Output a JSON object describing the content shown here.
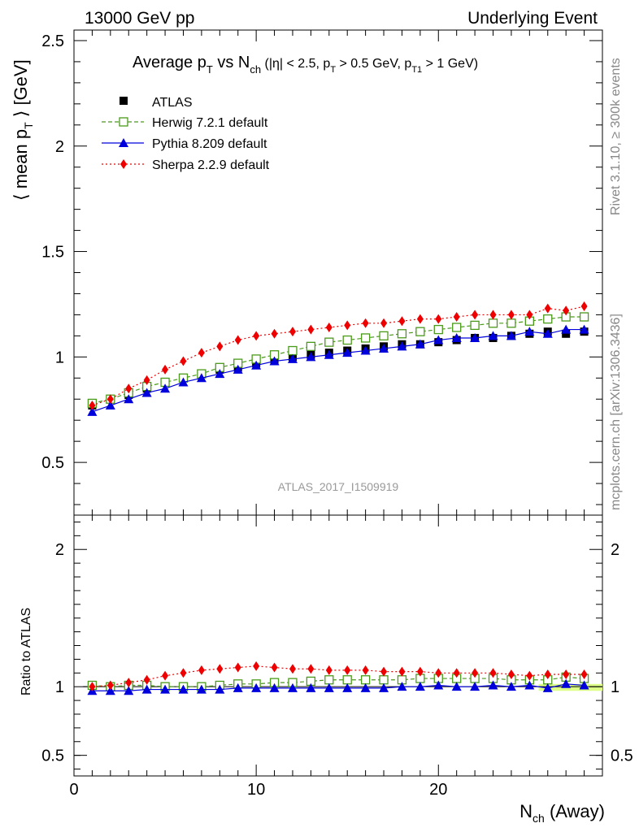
{
  "header": {
    "left": "13000 GeV pp",
    "right": "Underlying Event"
  },
  "title": {
    "main": "Average p",
    "main_sub": "T",
    "vs": " vs N",
    "vs_sub": "ch",
    "cuts_a": " (|η| < 2.5, p",
    "cuts_a_sub": "T",
    "cuts_b": " > 0.5 GeV, p",
    "cuts_b_sub": "T1",
    "cuts_c": " > 1 GeV)"
  },
  "side": {
    "rivet": "Rivet 3.1.10, ≥ 300k events",
    "mcplots": "mcplots.cern.ch [arXiv:1306.3436]"
  },
  "watermark": "ATLAS_2017_I1509919",
  "ylabel_main": {
    "pre": "⟨ mean p",
    "sub": "T",
    "post": " ⟩ [GeV]"
  },
  "ylabel_ratio": "Ratio to ATLAS",
  "xlabel": {
    "pre": "N",
    "sub": "ch",
    "post": " (Away)"
  },
  "colors": {
    "atlas": "#000000",
    "herwig": "#4a9a1a",
    "pythia": "#0000dd",
    "sherpa": "#ee0000",
    "band": "#ddff88"
  },
  "chart_data": {
    "type": "line",
    "x": [
      1,
      2,
      3,
      4,
      5,
      6,
      7,
      8,
      9,
      10,
      11,
      12,
      13,
      14,
      15,
      16,
      17,
      18,
      19,
      20,
      21,
      22,
      23,
      24,
      25,
      26,
      27,
      28
    ],
    "xlim": [
      0,
      29
    ],
    "xticks": [
      0,
      10,
      20
    ],
    "main": {
      "ylim": [
        0.25,
        2.55
      ],
      "yticks": [
        0.5,
        1,
        1.5,
        2,
        2.5
      ],
      "ytick_labels": [
        "0.5",
        "1",
        "1.5",
        "2",
        "2.5"
      ]
    },
    "ratio": {
      "ylim": [
        0.35,
        2.25
      ],
      "yticks": [
        0.5,
        1,
        2
      ],
      "ytick_labels": [
        "0.5",
        "1",
        "2"
      ]
    },
    "legend_position": "top-left",
    "series": [
      {
        "name": "ATLAS",
        "key": "atlas",
        "marker": "square-filled",
        "values": [
          0.77,
          0.8,
          0.82,
          0.85,
          0.88,
          0.9,
          0.92,
          0.94,
          0.95,
          0.97,
          0.98,
          1.0,
          1.01,
          1.02,
          1.03,
          1.04,
          1.05,
          1.06,
          1.06,
          1.07,
          1.08,
          1.09,
          1.09,
          1.1,
          1.11,
          1.12,
          1.11,
          1.12
        ],
        "ratio": [
          1,
          1,
          1,
          1,
          1,
          1,
          1,
          1,
          1,
          1,
          1,
          1,
          1,
          1,
          1,
          1,
          1,
          1,
          1,
          1,
          1,
          1,
          1,
          1,
          1,
          1,
          1,
          1
        ]
      },
      {
        "name": "Herwig 7.2.1 default",
        "key": "herwig",
        "marker": "square-open",
        "dash": "5,3",
        "values": [
          0.78,
          0.8,
          0.83,
          0.86,
          0.88,
          0.9,
          0.92,
          0.95,
          0.97,
          0.99,
          1.01,
          1.03,
          1.05,
          1.07,
          1.08,
          1.09,
          1.1,
          1.11,
          1.12,
          1.13,
          1.14,
          1.15,
          1.16,
          1.16,
          1.17,
          1.18,
          1.19,
          1.19
        ],
        "ratio": [
          1.01,
          1.0,
          1.01,
          1.01,
          1.0,
          1.0,
          1.0,
          1.01,
          1.02,
          1.02,
          1.03,
          1.03,
          1.04,
          1.05,
          1.05,
          1.05,
          1.05,
          1.05,
          1.06,
          1.06,
          1.06,
          1.06,
          1.06,
          1.05,
          1.05,
          1.05,
          1.07,
          1.06
        ]
      },
      {
        "name": "Pythia 8.209 default",
        "key": "pythia",
        "marker": "triangle",
        "dash": "",
        "values": [
          0.74,
          0.77,
          0.8,
          0.83,
          0.85,
          0.88,
          0.9,
          0.92,
          0.94,
          0.96,
          0.98,
          0.99,
          1.0,
          1.01,
          1.02,
          1.03,
          1.04,
          1.05,
          1.06,
          1.08,
          1.09,
          1.09,
          1.1,
          1.1,
          1.12,
          1.11,
          1.13,
          1.13
        ],
        "ratio": [
          0.97,
          0.97,
          0.97,
          0.98,
          0.98,
          0.98,
          0.98,
          0.98,
          0.99,
          0.99,
          0.99,
          0.99,
          0.99,
          0.99,
          0.99,
          0.99,
          0.99,
          1.0,
          1.0,
          1.01,
          1.0,
          1.0,
          1.01,
          1.0,
          1.01,
          0.99,
          1.02,
          1.01
        ]
      },
      {
        "name": "Sherpa 2.2.9 default",
        "key": "sherpa",
        "marker": "diamond",
        "dash": "2,3",
        "values": [
          0.77,
          0.8,
          0.85,
          0.89,
          0.94,
          0.98,
          1.02,
          1.05,
          1.08,
          1.1,
          1.11,
          1.12,
          1.13,
          1.14,
          1.15,
          1.16,
          1.16,
          1.17,
          1.18,
          1.18,
          1.19,
          1.2,
          1.2,
          1.2,
          1.2,
          1.23,
          1.22,
          1.24
        ],
        "ratio": [
          1.0,
          1.01,
          1.03,
          1.05,
          1.08,
          1.1,
          1.12,
          1.13,
          1.14,
          1.15,
          1.14,
          1.13,
          1.13,
          1.12,
          1.12,
          1.12,
          1.11,
          1.11,
          1.11,
          1.1,
          1.1,
          1.1,
          1.1,
          1.09,
          1.08,
          1.09,
          1.09,
          1.09
        ]
      }
    ]
  }
}
